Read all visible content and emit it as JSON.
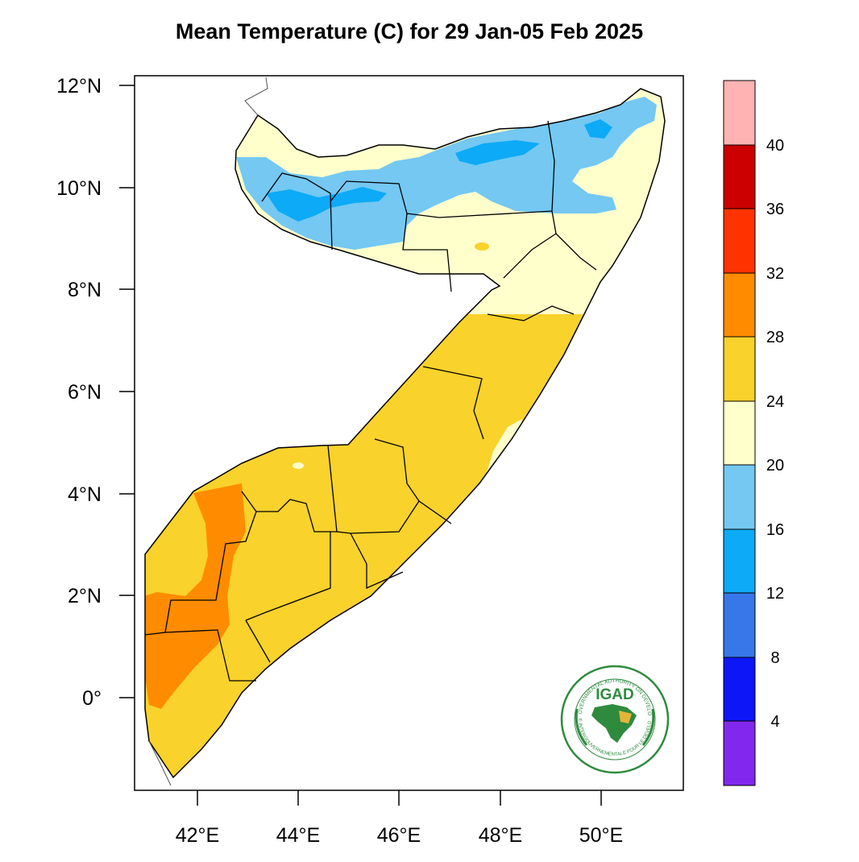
{
  "title": "Mean Temperature (C) for 29 Jan-05 Feb 2025",
  "axes": {
    "x_ticks": [
      "42°E",
      "44°E",
      "46°E",
      "48°E",
      "50°E"
    ],
    "y_ticks": [
      "12°N",
      "10°N",
      "8°N",
      "6°N",
      "4°N",
      "2°N",
      "0°"
    ]
  },
  "colorbar": {
    "labels": [
      "40",
      "36",
      "32",
      "28",
      "24",
      "20",
      "16",
      "12",
      "8",
      "4"
    ],
    "colors": [
      "#FFB3B3",
      "#CC0000",
      "#FF3300",
      "#FF8C00",
      "#F9D22B",
      "#FFFFCC",
      "#74C8F2",
      "#0DAAF7",
      "#3877EA",
      "#0D16F6",
      "#8228EE"
    ]
  },
  "logo": {
    "acronym": "IGAD",
    "ring_text_top": "INTERGOVERNMENTAL AUTHORITY ON DEVELOPMENT",
    "ring_text_bottom": "AUTORITE INTERGOUVERNEMENTALE POUR LE DEVELOPPEMENT"
  }
}
